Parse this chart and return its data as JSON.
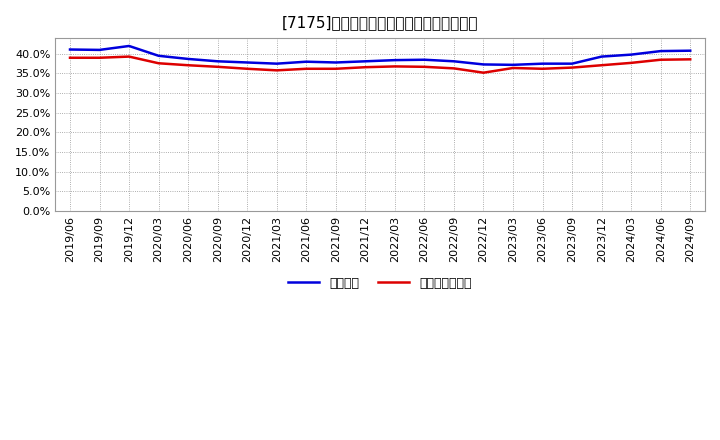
{
  "title": "[7175]　固定比率、固定長期適合率の推移",
  "ylim": [
    0.0,
    0.44
  ],
  "yticks": [
    0.0,
    0.05,
    0.1,
    0.15,
    0.2,
    0.25,
    0.3,
    0.35,
    0.4
  ],
  "background_color": "#ffffff",
  "plot_bg_color": "#ffffff",
  "grid_color": "#888888",
  "x_labels": [
    "2019/06",
    "2019/09",
    "2019/12",
    "2020/03",
    "2020/06",
    "2020/09",
    "2020/12",
    "2021/03",
    "2021/06",
    "2021/09",
    "2021/12",
    "2022/03",
    "2022/06",
    "2022/09",
    "2022/12",
    "2023/03",
    "2023/06",
    "2023/09",
    "2023/12",
    "2024/03",
    "2024/06",
    "2024/09"
  ],
  "fixed_ratio": [
    0.411,
    0.41,
    0.42,
    0.395,
    0.387,
    0.381,
    0.378,
    0.375,
    0.38,
    0.378,
    0.381,
    0.384,
    0.385,
    0.381,
    0.373,
    0.372,
    0.375,
    0.375,
    0.393,
    0.398,
    0.407,
    0.408
  ],
  "fixed_long_ratio": [
    0.39,
    0.39,
    0.393,
    0.376,
    0.371,
    0.367,
    0.362,
    0.358,
    0.362,
    0.362,
    0.366,
    0.368,
    0.367,
    0.363,
    0.352,
    0.364,
    0.362,
    0.365,
    0.371,
    0.377,
    0.385,
    0.386
  ],
  "line1_color": "#0000dd",
  "line2_color": "#dd0000",
  "line1_label": "固定比率",
  "line2_label": "固定長期適合率",
  "line_width": 1.8,
  "title_fontsize": 11,
  "tick_fontsize": 8,
  "legend_fontsize": 9
}
